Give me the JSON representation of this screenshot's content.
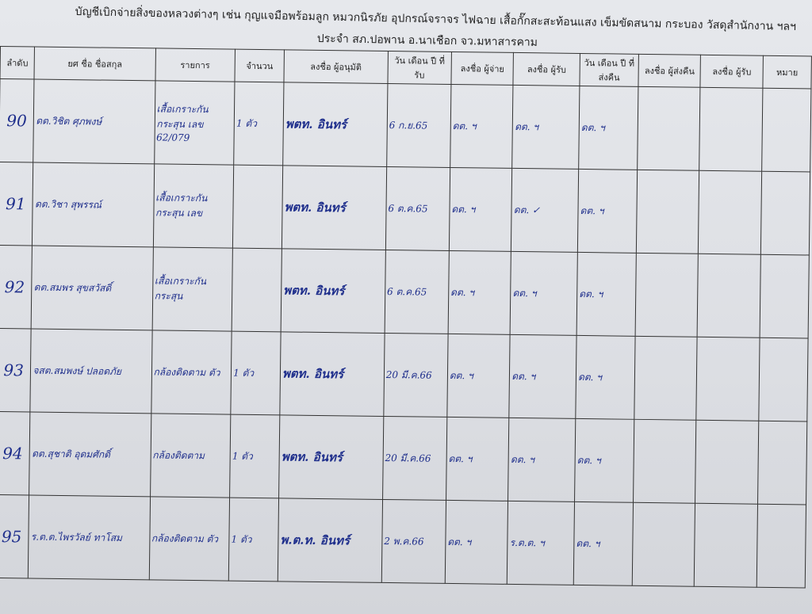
{
  "title": "บัญชีเบิกจ่ายสิ่งของหลวงต่างๆ เช่น กุญแจมือพร้อมลูก หมวกนิรภัย อุปกรณ์จราจร ไฟฉาย เสื้อกั๊กสะสะท้อนแสง เข็มขัดสนาม กระบอง วัสดุสำนักงาน ฯลฯ",
  "subtitle": "ประจำ  สภ.ปอพาน  อ.นาเชือก  จว.มหาสารคาม",
  "columns": [
    "ลำดับ",
    "ยศ  ชื่อ   ชื่อสกุล",
    "รายการ",
    "จำนวน",
    "ลงชื่อ ผู้อนุมัติ",
    "วัน เดือน ปี ที่รับ",
    "ลงชื่อ ผู้จ่าย",
    "ลงชื่อ ผู้รับ",
    "วัน เดือน ปี ที่ส่งคืน",
    "ลงชื่อ ผู้ส่งคืน",
    "ลงชื่อ ผู้รับ",
    "หมาย"
  ],
  "rows": [
    {
      "no": "90",
      "name": "ดต.วิชิต ศุภพงษ์",
      "item": "เสื้อเกราะกันกระสุน เลข 62/079",
      "qty": "1 ตัว",
      "approver": "พตท. อินทร์",
      "date": "6 ก.ย.65",
      "issuer": "ดต. ฯ",
      "receiver": "ดต. ฯ",
      "return_date": "ดต. ฯ"
    },
    {
      "no": "91",
      "name": "ดต.วิชา สุพรรณ์",
      "item": "เสื้อเกราะกันกระสุน เลข",
      "qty": "",
      "approver": "พตท. อินทร์",
      "date": "6 ต.ค.65",
      "issuer": "ดต. ฯ",
      "receiver": "ดต. ✓",
      "return_date": "ดต. ฯ"
    },
    {
      "no": "92",
      "name": "ดต.สมพร สุขสวัสดิ์",
      "item": "เสื้อเกราะกันกระสุน",
      "qty": "",
      "approver": "พตท. อินทร์",
      "date": "6 ต.ค.65",
      "issuer": "ดต. ฯ",
      "receiver": "ดต. ฯ",
      "return_date": "ดต. ฯ"
    },
    {
      "no": "93",
      "name": "จสต.สมพงษ์ ปลอดภัย",
      "item": "กล้องติดตาม ตัว",
      "qty": "1 ตัว",
      "approver": "พตท. อินทร์",
      "date": "20 มี.ค.66",
      "issuer": "ดต. ฯ",
      "receiver": "ดต. ฯ",
      "return_date": "ดต. ฯ"
    },
    {
      "no": "94",
      "name": "ดต.สุชาติ อุดมศักดิ์",
      "item": "กล้องติดตาม",
      "qty": "1 ตัว",
      "approver": "พตท. อินทร์",
      "date": "20 มี.ค.66",
      "issuer": "ดต. ฯ",
      "receiver": "ดต. ฯ",
      "return_date": "ดต. ฯ"
    },
    {
      "no": "95",
      "name": "ร.ต.ต.ไพรวัลย์ ทาโสม",
      "item": "กล้องติดตาม ตัว",
      "qty": "1 ตัว",
      "approver": "พ.ต.ท. อินทร์",
      "date": "2 พ.ค.66",
      "issuer": "ดต. ฯ",
      "receiver": "ร.ต.ต. ฯ",
      "return_date": "ดต. ฯ"
    }
  ]
}
